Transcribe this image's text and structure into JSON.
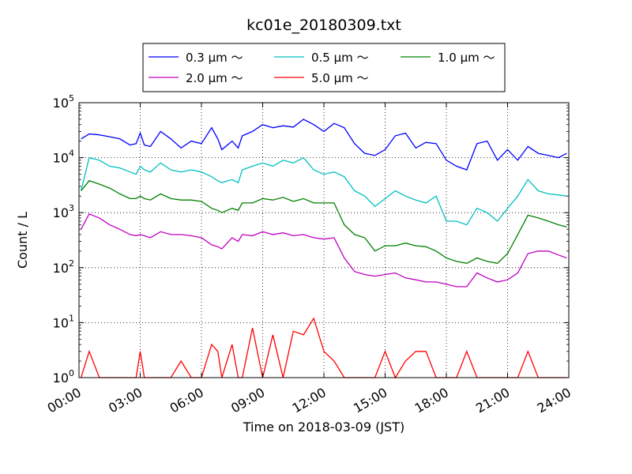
{
  "chart_data": {
    "type": "line",
    "title": "kc01e_20180309.txt",
    "xlabel": "Time on 2018-03-09 (JST)",
    "ylabel": "Count / L",
    "yscale": "log",
    "ylim": [
      1,
      100000
    ],
    "xlim": [
      "00:00",
      "24:00"
    ],
    "grid": true,
    "legend_position": "top-center (above plot)",
    "legend_columns": 3,
    "x_tick_labels": [
      "00:00",
      "03:00",
      "06:00",
      "09:00",
      "12:00",
      "15:00",
      "18:00",
      "21:00",
      "24:00"
    ],
    "y_tick_labels": [
      {
        "base": "10",
        "exp": "0"
      },
      {
        "base": "10",
        "exp": "1"
      },
      {
        "base": "10",
        "exp": "2"
      },
      {
        "base": "10",
        "exp": "3"
      },
      {
        "base": "10",
        "exp": "4"
      },
      {
        "base": "10",
        "exp": "5"
      }
    ],
    "x_hours": [
      0.1,
      0.5,
      1.0,
      1.5,
      2.0,
      2.5,
      2.8,
      3.0,
      3.2,
      3.5,
      4.0,
      4.5,
      5.0,
      5.5,
      6.0,
      6.5,
      6.8,
      7.0,
      7.5,
      7.8,
      8.0,
      8.5,
      9.0,
      9.5,
      10.0,
      10.5,
      11.0,
      11.5,
      12.0,
      12.5,
      13.0,
      13.5,
      14.0,
      14.5,
      15.0,
      15.5,
      16.0,
      16.5,
      17.0,
      17.5,
      18.0,
      18.5,
      19.0,
      19.5,
      20.0,
      20.5,
      21.0,
      21.5,
      22.0,
      22.5,
      23.0,
      23.5,
      23.9
    ],
    "series": [
      {
        "name": "0.3 μm ～",
        "color": "#0000ff",
        "values": [
          22000,
          27000,
          26000,
          24000,
          22000,
          17000,
          18000,
          28000,
          17000,
          16000,
          30000,
          22000,
          15000,
          20000,
          18000,
          35000,
          22000,
          14000,
          20000,
          15000,
          25000,
          30000,
          40000,
          35000,
          38000,
          36000,
          50000,
          40000,
          30000,
          42000,
          35000,
          18000,
          12000,
          11000,
          14000,
          25000,
          28000,
          15000,
          19000,
          18000,
          9000,
          7000,
          6000,
          18000,
          20000,
          9000,
          14000,
          9000,
          16000,
          12000,
          11000,
          10000,
          12000
        ]
      },
      {
        "name": "0.5 μm ～",
        "color": "#00bfbf",
        "values": [
          2500,
          10000,
          9000,
          7000,
          6500,
          5500,
          5000,
          7000,
          6000,
          5500,
          8000,
          6000,
          5500,
          6000,
          5500,
          4500,
          3800,
          3500,
          4000,
          3500,
          6000,
          7000,
          8000,
          7000,
          9000,
          8000,
          10000,
          6000,
          5000,
          5500,
          4500,
          2500,
          2000,
          1300,
          1800,
          2500,
          2000,
          1700,
          1500,
          2000,
          700,
          700,
          600,
          1200,
          1000,
          700,
          1200,
          2000,
          4000,
          2500,
          2200,
          2100,
          2000
        ]
      },
      {
        "name": "1.0 μm ～",
        "color": "#008000",
        "values": [
          2500,
          3800,
          3300,
          2800,
          2200,
          1800,
          1800,
          2000,
          1800,
          1700,
          2200,
          1800,
          1700,
          1700,
          1600,
          1200,
          1100,
          1000,
          1200,
          1100,
          1500,
          1500,
          1800,
          1700,
          1900,
          1600,
          1800,
          1500,
          1500,
          1500,
          600,
          400,
          350,
          200,
          250,
          250,
          280,
          250,
          240,
          200,
          150,
          130,
          120,
          150,
          130,
          120,
          180,
          400,
          900,
          800,
          700,
          600,
          550
        ]
      },
      {
        "name": "2.0 μm ～",
        "color": "#bf00bf",
        "values": [
          500,
          950,
          800,
          600,
          500,
          400,
          380,
          400,
          380,
          350,
          450,
          400,
          400,
          380,
          350,
          260,
          240,
          220,
          350,
          300,
          400,
          380,
          450,
          400,
          430,
          380,
          400,
          350,
          330,
          350,
          150,
          85,
          75,
          70,
          75,
          80,
          65,
          60,
          55,
          55,
          50,
          45,
          45,
          80,
          65,
          55,
          60,
          80,
          180,
          200,
          200,
          170,
          150
        ]
      },
      {
        "name": "5.0 μm ～",
        "color": "#ff0000",
        "values": [
          1,
          3,
          1,
          1,
          1,
          1,
          1,
          3,
          1,
          1,
          1,
          1,
          2,
          1,
          1,
          4,
          3,
          1,
          4,
          1,
          1,
          8,
          1,
          6,
          1,
          7,
          6,
          12,
          3,
          2,
          1,
          1,
          1,
          1,
          3,
          1,
          2,
          3,
          3,
          1,
          1,
          1,
          3,
          1,
          1,
          1,
          1,
          1,
          3,
          1,
          1,
          1,
          1
        ]
      }
    ]
  }
}
